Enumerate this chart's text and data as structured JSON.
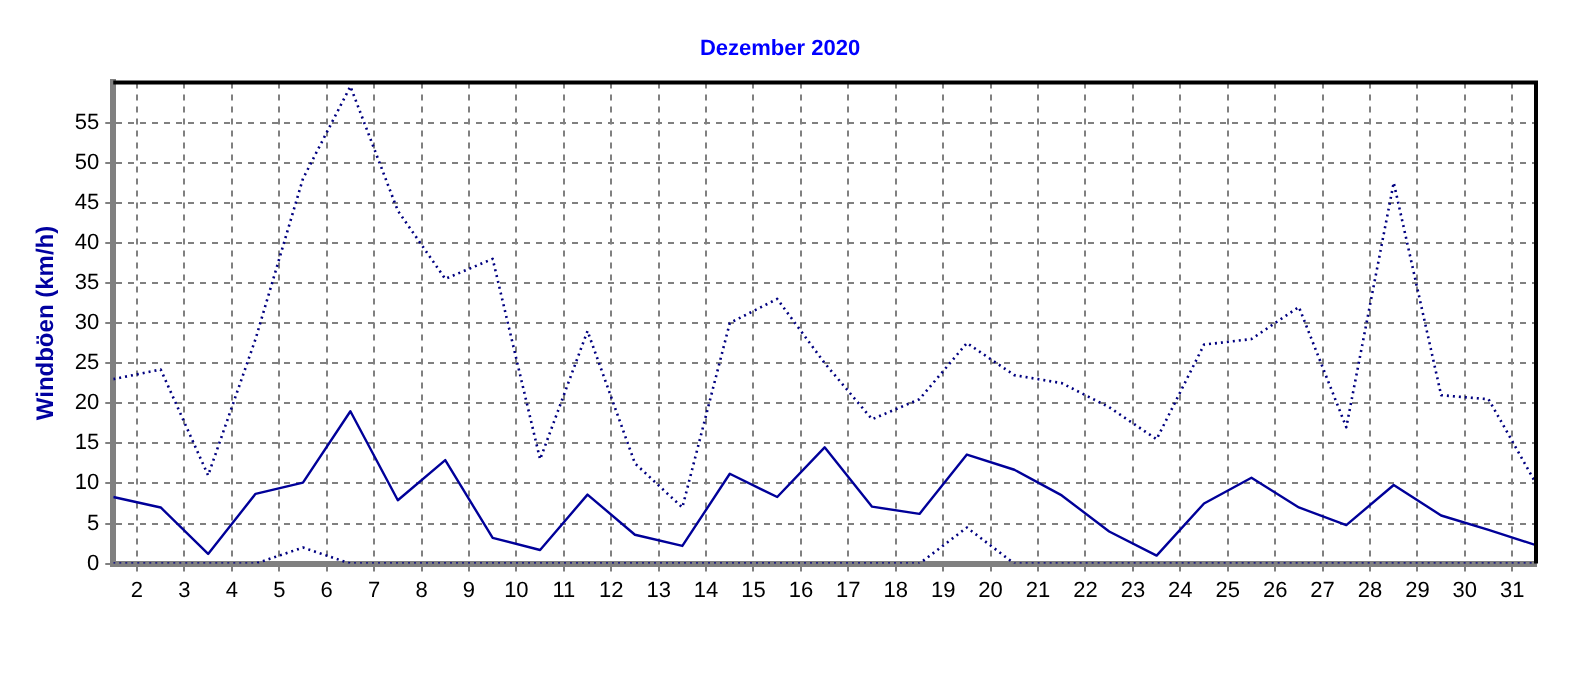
{
  "chart_data": {
    "type": "line",
    "title": "Dezember 2020",
    "ylabel": "Windböen (km/h)",
    "x": [
      1.5,
      2.5,
      3.5,
      4.5,
      5.5,
      6.5,
      7.5,
      8.5,
      9.5,
      10.5,
      11.5,
      12.5,
      13.5,
      14.5,
      15.5,
      16.5,
      17.5,
      18.5,
      19.5,
      20.5,
      21.5,
      22.5,
      23.5,
      24.5,
      25.5,
      26.5,
      27.5,
      28.5,
      29.5,
      30.5,
      31.5
    ],
    "series": [
      {
        "color": "#000080",
        "line_style": "dotted",
        "values": [
          23,
          24.2,
          11,
          28,
          48,
          59.5,
          44,
          35.5,
          38,
          13,
          29,
          12.5,
          7,
          30,
          33,
          25,
          18,
          20.5,
          27.5,
          23.5,
          22.5,
          19.5,
          15.5,
          27.3,
          28,
          32,
          17,
          47.5,
          21,
          20.5,
          10
        ]
      },
      {
        "color": "#000099",
        "line_style": "solid",
        "values": [
          8.3,
          7,
          1.2,
          8.7,
          10.1,
          19,
          7.9,
          12.9,
          3.2,
          1.7,
          8.6,
          3.6,
          2.2,
          11.2,
          8.3,
          14.5,
          7.1,
          6.2,
          13.6,
          11.7,
          8.5,
          4,
          1,
          7.5,
          10.7,
          7,
          4.8,
          9.8,
          6,
          4.2,
          2.3
        ]
      },
      {
        "color": "#000080",
        "line_style": "dotted",
        "values": [
          0,
          0,
          0,
          0,
          2,
          0,
          0,
          0,
          0,
          0,
          0,
          0,
          0,
          0,
          0,
          0,
          0,
          0,
          4.5,
          0,
          0,
          0,
          0,
          0,
          0,
          0,
          0,
          0,
          0,
          0,
          0
        ]
      }
    ],
    "xlim": [
      1.5,
      31.5
    ],
    "xticks": [
      2,
      3,
      4,
      5,
      6,
      7,
      8,
      9,
      10,
      11,
      12,
      13,
      14,
      15,
      16,
      17,
      18,
      19,
      20,
      21,
      22,
      23,
      24,
      25,
      26,
      27,
      28,
      29,
      30,
      31
    ],
    "ylim": [
      0,
      60
    ],
    "yticks": [
      0,
      5,
      10,
      15,
      20,
      25,
      30,
      35,
      40,
      45,
      50,
      55
    ],
    "grid": true,
    "legend": false,
    "marker": "none"
  }
}
